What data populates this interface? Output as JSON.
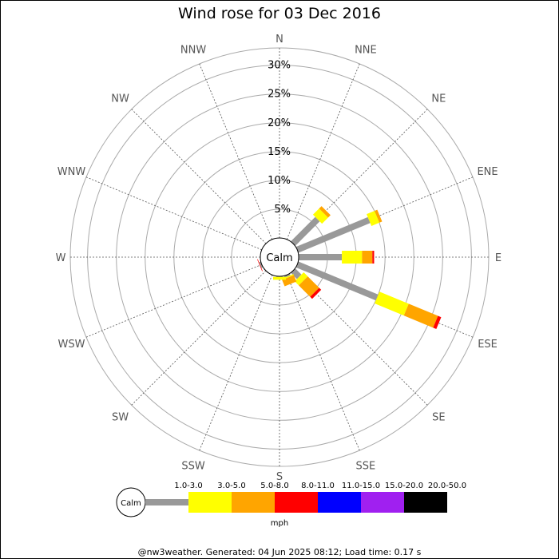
{
  "title": "Wind rose for 03 Dec 2016",
  "footer": "@nw3weather. Generated: 04 Jun 2025 08:12; Load time: 0.17 s",
  "chart_data": {
    "type": "windrose",
    "directions": [
      "N",
      "NNE",
      "NE",
      "ENE",
      "E",
      "ESE",
      "SE",
      "SSE",
      "S",
      "SSW",
      "SW",
      "WSW",
      "W",
      "WNW",
      "NW",
      "NNW"
    ],
    "radial_ticks": [
      "5%",
      "10%",
      "15%",
      "20%",
      "25%",
      "30%"
    ],
    "radial_values": [
      5,
      10,
      15,
      20,
      25,
      30
    ],
    "rmax": 33,
    "calm_label": "Calm",
    "unit": "mph",
    "bins": [
      {
        "label": "1.0-3.0",
        "color": "#999999"
      },
      {
        "label": "3.0-5.0",
        "color": "#ffff00"
      },
      {
        "label": "5.0-8.0",
        "color": "#ffa500"
      },
      {
        "label": "8.0-11.0",
        "color": "#ff0000"
      },
      {
        "label": "11.0-15.0",
        "color": "#0000ff"
      },
      {
        "label": "15.0-20.0",
        "color": "#a020f0"
      },
      {
        "label": "20.0-50.0",
        "color": "#000000"
      }
    ],
    "series": [
      {
        "direction": "NE",
        "angle": 45,
        "values": [
          6.0,
          1.5,
          0.6,
          0,
          0,
          0,
          0
        ]
      },
      {
        "direction": "ENE",
        "angle": 67.5,
        "values": [
          13.5,
          1.5,
          0.5,
          0,
          0,
          0,
          0
        ]
      },
      {
        "direction": "E",
        "angle": 90,
        "values": [
          7.5,
          3.5,
          1.8,
          0.3,
          0,
          0,
          0
        ]
      },
      {
        "direction": "ESE",
        "angle": 112.5,
        "values": [
          15.0,
          5.5,
          5.5,
          0.6,
          0,
          0,
          0
        ]
      },
      {
        "direction": "SE",
        "angle": 135,
        "values": [
          1.5,
          1.0,
          2.8,
          0.5,
          0,
          0,
          0
        ]
      },
      {
        "direction": "SSE",
        "angle": 157.5,
        "values": [
          0.3,
          0.2,
          1.2,
          0,
          0,
          0,
          0
        ]
      },
      {
        "direction": "S",
        "angle": 180,
        "values": [
          0.1,
          0.5,
          0,
          0,
          0,
          0,
          0
        ]
      },
      {
        "direction": "SSW",
        "angle": 202.5,
        "values": [
          0,
          0,
          0,
          0,
          0,
          0,
          0
        ]
      },
      {
        "direction": "SW",
        "angle": 225,
        "values": [
          0.1,
          0,
          0,
          0,
          0,
          0,
          0
        ]
      },
      {
        "direction": "WSW",
        "angle": 247.5,
        "values": [
          0.3,
          0,
          0,
          0.1,
          0,
          0,
          0
        ]
      }
    ]
  }
}
